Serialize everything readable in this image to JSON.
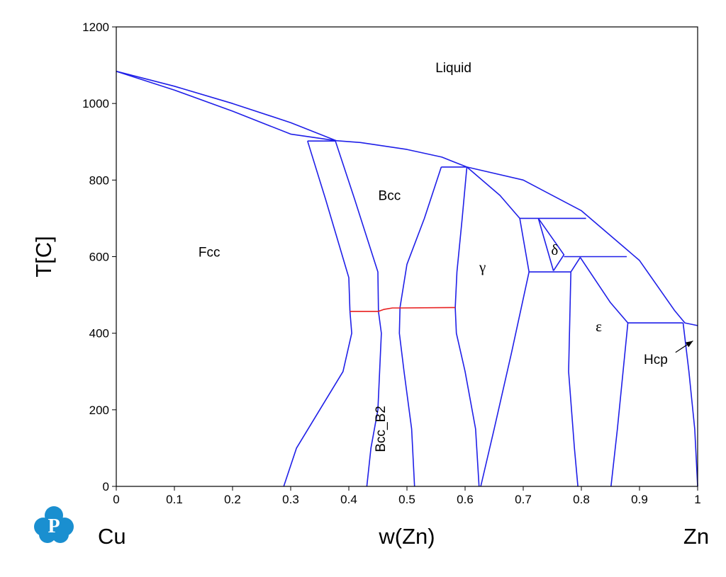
{
  "chart_data": {
    "type": "phase_diagram",
    "xlabel": "w(Zn)",
    "ylabel": "T[C]",
    "xlim": [
      0,
      1
    ],
    "ylim": [
      0,
      1200
    ],
    "x_ticks": [
      "0",
      "0.1",
      "0.2",
      "0.3",
      "0.4",
      "0.5",
      "0.6",
      "0.7",
      "0.8",
      "0.9",
      "1"
    ],
    "y_ticks": [
      "0",
      "200",
      "400",
      "600",
      "800",
      "1000",
      "1200"
    ],
    "grid": false,
    "left_element": "Cu",
    "right_element": "Zn",
    "line_colors": {
      "phase_boundary": "#1f1fe8",
      "ordering_transition": "#e81f1f"
    },
    "phase_labels": [
      {
        "name": "Liquid",
        "x": 0.58,
        "y": 1082,
        "style": "text"
      },
      {
        "name": "Fcc",
        "x": 0.16,
        "y": 600,
        "style": "text"
      },
      {
        "name": "Bcc",
        "x": 0.47,
        "y": 748,
        "style": "text"
      },
      {
        "name": "Bcc_B2",
        "x": 0.462,
        "y": 150,
        "style": "rotated"
      },
      {
        "name": "γ",
        "x": 0.63,
        "y": 560,
        "style": "greek"
      },
      {
        "name": "δ",
        "x": 0.754,
        "y": 605,
        "style": "greek"
      },
      {
        "name": "ε",
        "x": 0.83,
        "y": 405,
        "style": "greek"
      },
      {
        "name": "Hcp",
        "x": 0.928,
        "y": 320,
        "style": "text"
      }
    ],
    "boundaries": [
      {
        "kind": "phase_boundary",
        "points": [
          [
            0,
            1084
          ],
          [
            0.1,
            1035
          ],
          [
            0.2,
            980
          ],
          [
            0.3,
            920
          ],
          [
            0.377,
            903
          ]
        ]
      },
      {
        "kind": "phase_boundary",
        "points": [
          [
            0,
            1084
          ],
          [
            0.1,
            1045
          ],
          [
            0.2,
            1000
          ],
          [
            0.3,
            950
          ],
          [
            0.378,
            903
          ]
        ]
      },
      {
        "kind": "phase_boundary",
        "points": [
          [
            0.329,
            902
          ],
          [
            0.377,
            902
          ]
        ]
      },
      {
        "kind": "phase_boundary",
        "points": [
          [
            0.376,
            903
          ],
          [
            0.42,
            898
          ],
          [
            0.5,
            880
          ],
          [
            0.56,
            860
          ],
          [
            0.603,
            834
          ]
        ]
      },
      {
        "kind": "phase_boundary",
        "points": [
          [
            0.603,
            834
          ],
          [
            0.7,
            800
          ],
          [
            0.8,
            720
          ],
          [
            0.9,
            590
          ],
          [
            0.96,
            460
          ],
          [
            0.978,
            427
          ],
          [
            1,
            420
          ]
        ]
      },
      {
        "kind": "phase_boundary",
        "points": [
          [
            0.329,
            902
          ],
          [
            0.36,
            750
          ],
          [
            0.4,
            545
          ],
          [
            0.402,
            457
          ]
        ]
      },
      {
        "kind": "phase_boundary",
        "points": [
          [
            0.402,
            457
          ],
          [
            0.405,
            400
          ],
          [
            0.39,
            300
          ],
          [
            0.35,
            200
          ],
          [
            0.31,
            100
          ],
          [
            0.288,
            0
          ]
        ]
      },
      {
        "kind": "phase_boundary",
        "points": [
          [
            0.377,
            902
          ],
          [
            0.41,
            750
          ],
          [
            0.45,
            560
          ],
          [
            0.451,
            457
          ]
        ]
      },
      {
        "kind": "phase_boundary",
        "points": [
          [
            0.451,
            457
          ],
          [
            0.456,
            400
          ],
          [
            0.45,
            200
          ],
          [
            0.438,
            100
          ],
          [
            0.431,
            0
          ]
        ]
      },
      {
        "kind": "phase_boundary",
        "points": [
          [
            0.559,
            834
          ],
          [
            0.53,
            700
          ],
          [
            0.5,
            580
          ],
          [
            0.488,
            467
          ]
        ]
      },
      {
        "kind": "phase_boundary",
        "points": [
          [
            0.488,
            467
          ],
          [
            0.487,
            400
          ],
          [
            0.495,
            300
          ],
          [
            0.508,
            150
          ],
          [
            0.513,
            0
          ]
        ]
      },
      {
        "kind": "phase_boundary",
        "points": [
          [
            0.559,
            834
          ],
          [
            0.603,
            834
          ]
        ]
      },
      {
        "kind": "phase_boundary",
        "points": [
          [
            0.603,
            834
          ],
          [
            0.595,
            700
          ],
          [
            0.586,
            560
          ],
          [
            0.583,
            467
          ],
          [
            0.585,
            400
          ],
          [
            0.6,
            300
          ],
          [
            0.618,
            150
          ],
          [
            0.624,
            0
          ]
        ]
      },
      {
        "kind": "phase_boundary",
        "points": [
          [
            0.603,
            834
          ],
          [
            0.66,
            760
          ],
          [
            0.694,
            700
          ],
          [
            0.71,
            560
          ]
        ]
      },
      {
        "kind": "phase_boundary",
        "points": [
          [
            0.71,
            560
          ],
          [
            0.68,
            350
          ],
          [
            0.65,
            150
          ],
          [
            0.627,
            0
          ]
        ]
      },
      {
        "kind": "phase_boundary",
        "points": [
          [
            0.694,
            700
          ],
          [
            0.808,
            700
          ]
        ]
      },
      {
        "kind": "phase_boundary",
        "points": [
          [
            0.71,
            560
          ],
          [
            0.782,
            560
          ]
        ]
      },
      {
        "kind": "phase_boundary",
        "points": [
          [
            0.726,
            700
          ],
          [
            0.752,
            563
          ]
        ]
      },
      {
        "kind": "phase_boundary",
        "points": [
          [
            0.726,
            700
          ],
          [
            0.77,
            605
          ],
          [
            0.752,
            563
          ]
        ]
      },
      {
        "kind": "phase_boundary",
        "points": [
          [
            0.77,
            600
          ],
          [
            0.878,
            600
          ]
        ]
      },
      {
        "kind": "phase_boundary",
        "points": [
          [
            0.782,
            560
          ],
          [
            0.778,
            300
          ],
          [
            0.788,
            100
          ],
          [
            0.794,
            0
          ]
        ]
      },
      {
        "kind": "phase_boundary",
        "points": [
          [
            0.782,
            560
          ],
          [
            0.798,
            598
          ]
        ]
      },
      {
        "kind": "phase_boundary",
        "points": [
          [
            0.798,
            598
          ],
          [
            0.85,
            480
          ],
          [
            0.88,
            427
          ]
        ]
      },
      {
        "kind": "phase_boundary",
        "points": [
          [
            0.88,
            427
          ],
          [
            0.862,
            150
          ],
          [
            0.851,
            0
          ]
        ]
      },
      {
        "kind": "phase_boundary",
        "points": [
          [
            0.88,
            427
          ],
          [
            0.975,
            427
          ]
        ]
      },
      {
        "kind": "phase_boundary",
        "points": [
          [
            0.975,
            427
          ],
          [
            0.985,
            300
          ],
          [
            0.995,
            150
          ],
          [
            1,
            0
          ]
        ]
      },
      {
        "kind": "ordering_transition",
        "points": [
          [
            0.402,
            457
          ],
          [
            0.451,
            457
          ],
          [
            0.46,
            462
          ],
          [
            0.475,
            466
          ],
          [
            0.488,
            466
          ],
          [
            0.583,
            467
          ]
        ]
      }
    ]
  }
}
